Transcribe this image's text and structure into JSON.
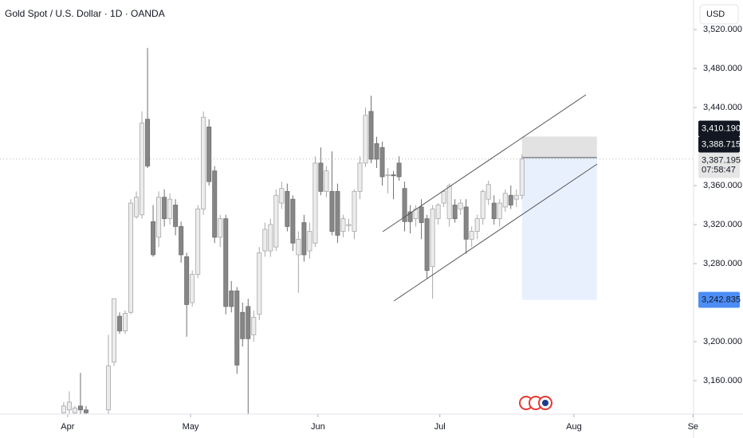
{
  "chart_data": {
    "type": "candlestick",
    "title": "Gold Spot / U.S. Dollar · 1D · OANDA",
    "currency": "USD",
    "x": [
      0,
      1,
      2,
      3,
      4,
      8,
      9,
      10,
      11,
      12,
      13,
      14,
      15,
      16,
      17,
      18,
      19,
      20,
      21,
      22,
      23,
      24,
      25,
      26,
      27,
      28,
      29,
      30,
      31,
      32,
      33,
      34,
      35,
      36,
      37,
      38,
      39,
      40,
      41,
      42,
      43,
      44,
      45,
      46,
      47,
      48,
      49,
      50,
      51,
      52,
      53,
      54,
      55,
      56,
      57,
      58,
      59,
      60,
      61,
      62,
      63,
      64,
      65,
      66,
      67,
      68,
      69,
      70,
      71,
      72,
      73,
      74,
      75,
      76,
      77,
      78,
      79,
      80,
      81,
      82
    ],
    "open": [
      3127,
      3130,
      3127,
      3134,
      3130,
      3130,
      3179,
      3226,
      3211,
      3230,
      3328,
      3330,
      3428,
      3323,
      3307,
      3348,
      3326,
      3340,
      3318,
      3287,
      3240,
      3269,
      3336,
      3420,
      3375,
      3307,
      3326,
      3252,
      3252,
      3230,
      3236,
      3207,
      3228,
      3293,
      3293,
      3297,
      3342,
      3354,
      3346,
      3289,
      3322,
      3293,
      3301,
      3383,
      3354,
      3354,
      3354,
      3313,
      3319,
      3313,
      3354,
      3383,
      3436,
      3403,
      3399,
      3370,
      3371,
      3383,
      3357,
      3333,
      3326,
      3338,
      3326,
      3277,
      3326,
      3342,
      3326,
      3340,
      3336,
      3338,
      3305,
      3313,
      3326,
      3346,
      3342,
      3326,
      3338,
      3350,
      3346,
      3350
    ],
    "high": [
      3138,
      3149,
      3134,
      3168,
      3134,
      3207,
      3244,
      3230,
      3232,
      3346,
      3354,
      3436,
      3501,
      3340,
      3354,
      3356,
      3352,
      3346,
      3323,
      3291,
      3273,
      3340,
      3436,
      3428,
      3380,
      3330,
      3330,
      3262,
      3256,
      3240,
      3244,
      3232,
      3297,
      3322,
      3326,
      3356,
      3364,
      3362,
      3350,
      3313,
      3330,
      3322,
      3390,
      3399,
      3380,
      3395,
      3362,
      3330,
      3326,
      3356,
      3390,
      3440,
      3452,
      3410,
      3405,
      3378,
      3375,
      3390,
      3364,
      3340,
      3340,
      3346,
      3330,
      3340,
      3342,
      3356,
      3362,
      3346,
      3346,
      3346,
      3318,
      3330,
      3356,
      3365,
      3350,
      3346,
      3356,
      3360,
      3356,
      3392
    ],
    "low": [
      3126,
      3126,
      3126,
      3126,
      3126,
      3126,
      3175,
      3208,
      3208,
      3228,
      3326,
      3326,
      3378,
      3287,
      3297,
      3318,
      3320,
      3309,
      3281,
      3205,
      3236,
      3265,
      3330,
      3360,
      3301,
      3297,
      3228,
      3230,
      3167,
      3195,
      3126,
      3200,
      3222,
      3287,
      3287,
      3293,
      3336,
      3313,
      3293,
      3250,
      3282,
      3285,
      3297,
      3350,
      3348,
      3309,
      3301,
      3307,
      3313,
      3305,
      3346,
      3379,
      3383,
      3378,
      3360,
      3352,
      3346,
      3365,
      3313,
      3311,
      3318,
      3305,
      3265,
      3244,
      3320,
      3338,
      3318,
      3322,
      3330,
      3290,
      3297,
      3305,
      3320,
      3340,
      3320,
      3318,
      3333,
      3336,
      3338,
      3346
    ],
    "close": [
      3134,
      3138,
      3132,
      3130,
      3127,
      3175,
      3244,
      3211,
      3229,
      3342,
      3348,
      3424,
      3380,
      3289,
      3348,
      3326,
      3346,
      3318,
      3289,
      3238,
      3269,
      3336,
      3430,
      3364,
      3307,
      3326,
      3236,
      3236,
      3176,
      3203,
      3203,
      3225,
      3291,
      3315,
      3320,
      3350,
      3357,
      3318,
      3301,
      3305,
      3289,
      3313,
      3383,
      3354,
      3375,
      3313,
      3309,
      3326,
      3320,
      3354,
      3383,
      3432,
      3387,
      3387,
      3369,
      3371,
      3370,
      3369,
      3323,
      3323,
      3336,
      3322,
      3273,
      3336,
      3340,
      3354,
      3360,
      3326,
      3342,
      3305,
      3313,
      3326,
      3354,
      3361,
      3326,
      3342,
      3352,
      3340,
      3350,
      3387.195
    ],
    "last_close_label": "3,387.195",
    "countdown": "07:58:47",
    "up_color": "#ececec",
    "down_color": "#868686",
    "position": {
      "stop": {
        "value": 3410.19,
        "label": "3,410.190"
      },
      "entry": {
        "value": 3388.715,
        "label": "3,388.715"
      },
      "target": {
        "value": 3242.835,
        "label": "3,242.835"
      }
    },
    "xlim": [
      -11.4,
      112.7
    ],
    "xticks": [
      {
        "value": 0.7,
        "label": "Apr"
      },
      {
        "value": 22.7,
        "label": "May"
      },
      {
        "value": 45.5,
        "label": "Jun"
      },
      {
        "value": 67.3,
        "label": "Jul"
      },
      {
        "value": 91.3,
        "label": "Aug"
      },
      {
        "value": 112.6,
        "label": "Se"
      }
    ],
    "ylim": [
      3125.7,
      3550.2
    ],
    "yticks": [
      {
        "value": 3520,
        "label": "3,520.000"
      },
      {
        "value": 3480,
        "label": "3,480.000"
      },
      {
        "value": 3440,
        "label": "3,440.000"
      },
      {
        "value": 3360,
        "label": "3,360.000"
      },
      {
        "value": 3320,
        "label": "3,320.000"
      },
      {
        "value": 3280,
        "label": "3,280.000"
      },
      {
        "value": 3200,
        "label": "3,200.000"
      },
      {
        "value": 3160,
        "label": "3,160.000"
      }
    ],
    "grid": false
  }
}
